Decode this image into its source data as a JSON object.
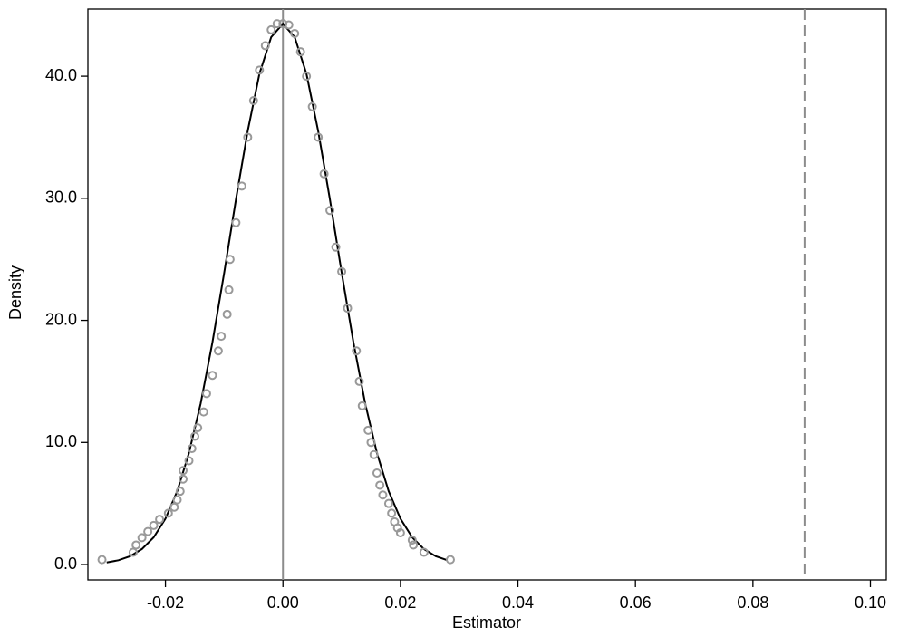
{
  "chart_data": {
    "type": "line",
    "x_label": "Estimator",
    "y_label": "Density",
    "xlim": [
      -0.0332,
      0.1027
    ],
    "ylim": [
      -1.26,
      45.5
    ],
    "xticks": [
      -0.02,
      {
        "value": 0,
        "label": "0.00"
      },
      0.02,
      0.04,
      0.06,
      0.08,
      {
        "value": 0.1,
        "label": "0.10"
      }
    ],
    "yticks": [
      {
        "value": 0,
        "label": "0.0"
      },
      {
        "value": 10,
        "label": "10.0"
      },
      {
        "value": 20,
        "label": "20.0"
      },
      {
        "value": 30,
        "label": "30.0"
      },
      {
        "value": 40,
        "label": "40.0"
      }
    ],
    "vlines": [
      {
        "x": 0,
        "color": "#8c8c8c",
        "dashed": false
      },
      {
        "x": 0.0888,
        "color": "#8c8c8c",
        "dashed": true
      }
    ],
    "series": [
      {
        "style": "line",
        "color": "#000000",
        "x": [
          -0.03,
          -0.028,
          -0.026,
          -0.024,
          -0.022,
          -0.02,
          -0.018,
          -0.016,
          -0.014,
          -0.012,
          -0.01,
          -0.008,
          -0.006,
          -0.004,
          -0.002,
          0,
          0.002,
          0.004,
          0.006,
          0.008,
          0.01,
          0.012,
          0.014,
          0.016,
          0.018,
          0.02,
          0.022,
          0.024,
          0.026,
          0.028
        ],
        "values": [
          0.17,
          0.35,
          0.68,
          1.27,
          2.23,
          3.76,
          6.0,
          9.13,
          13.2,
          18.2,
          23.9,
          29.9,
          35.5,
          40.2,
          43.2,
          44.3,
          43.2,
          40.2,
          35.5,
          29.9,
          23.9,
          18.2,
          13.2,
          9.13,
          6.0,
          3.76,
          2.23,
          1.27,
          0.68,
          0.35
        ]
      },
      {
        "style": "markers",
        "color": "#999999",
        "x": [
          -0.0308,
          -0.0255,
          -0.025,
          -0.024,
          -0.023,
          -0.022,
          -0.021,
          -0.0195,
          -0.0185,
          -0.018,
          -0.0175,
          -0.017,
          -0.017,
          -0.016,
          -0.0155,
          -0.015,
          -0.0145,
          -0.0135,
          -0.013,
          -0.012,
          -0.011,
          -0.0105,
          -0.0095,
          -0.0092,
          -0.009,
          -0.008,
          -0.007,
          -0.006,
          -0.005,
          -0.004,
          -0.003,
          -0.002,
          -0.001,
          0,
          0.001,
          0.002,
          0.003,
          0.004,
          0.005,
          0.006,
          0.007,
          0.008,
          0.009,
          0.01,
          0.011,
          0.0125,
          0.013,
          0.0135,
          0.0145,
          0.015,
          0.0155,
          0.016,
          0.0165,
          0.017,
          0.018,
          0.0185,
          0.019,
          0.0195,
          0.02,
          0.022,
          0.0222,
          0.024,
          0.0285
        ],
        "values": [
          0.4,
          1.0,
          1.6,
          2.2,
          2.7,
          3.2,
          3.7,
          4.2,
          4.7,
          5.3,
          6.0,
          7.0,
          7.7,
          8.5,
          9.5,
          10.5,
          11.2,
          12.5,
          14.0,
          15.5,
          17.5,
          18.7,
          20.5,
          22.5,
          25,
          28,
          31,
          35,
          38,
          40.5,
          42.5,
          43.8,
          44.3,
          44.3,
          44.2,
          43.5,
          42,
          40,
          37.5,
          35,
          32,
          29,
          26,
          24,
          21,
          17.5,
          15,
          13,
          11,
          10,
          9,
          7.5,
          6.5,
          5.7,
          5.0,
          4.2,
          3.5,
          3.0,
          2.6,
          2.0,
          1.6,
          1.0,
          0.4
        ]
      }
    ]
  }
}
